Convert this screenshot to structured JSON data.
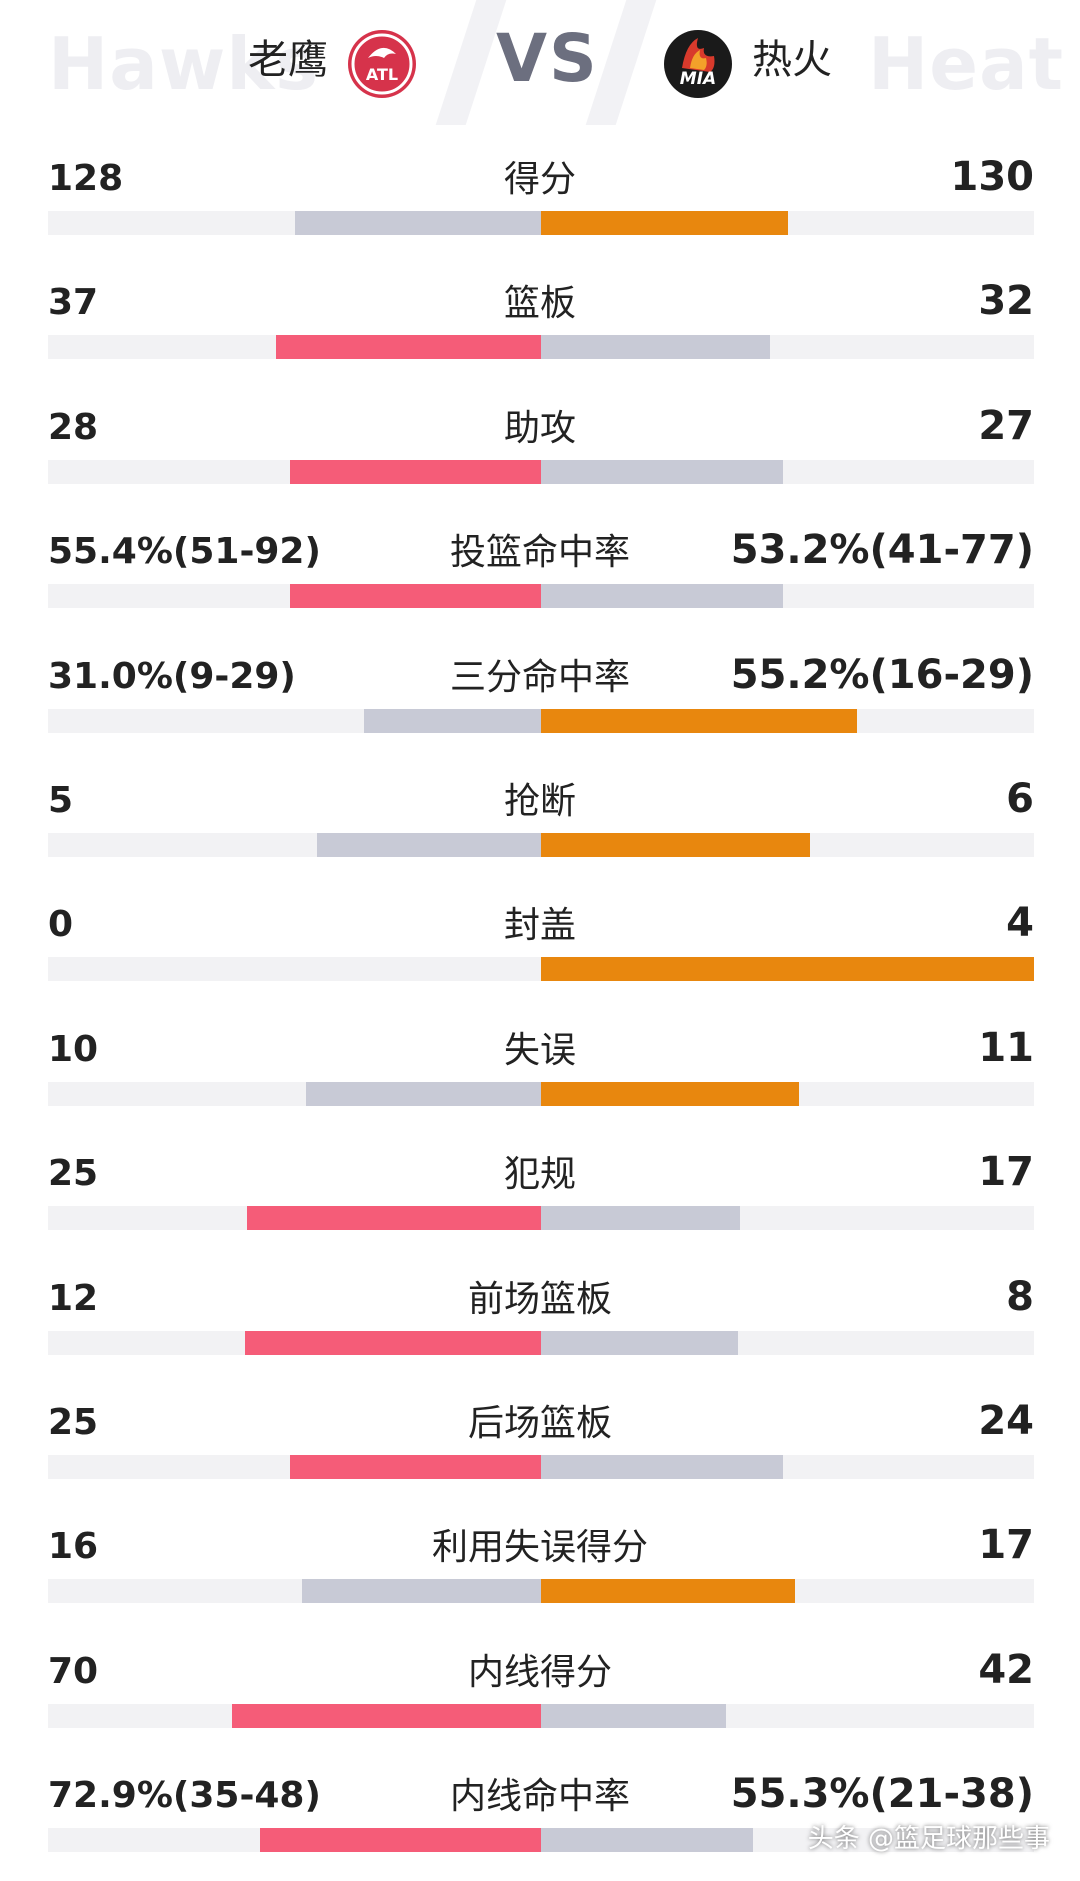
{
  "header": {
    "home": {
      "bg_word": "Hawks",
      "name": "老鹰",
      "logo_text": "ATL",
      "color": "#f0546f"
    },
    "away": {
      "bg_word": "Heat",
      "name": "热火",
      "logo_text": "MIA",
      "color": "#e8870e"
    },
    "vs": "VS"
  },
  "colors": {
    "home_win": "#f55c78",
    "away_win": "#e8870e",
    "loss": "#c8cad6",
    "track": "#f2f2f4"
  },
  "stats": [
    {
      "label": "得分",
      "home": "128",
      "away": "130",
      "home_frac": 0.25,
      "away_frac": 0.25,
      "leader": "away"
    },
    {
      "label": "篮板",
      "home": "37",
      "away": "32",
      "home_frac": 0.269,
      "away_frac": 0.232,
      "leader": "home"
    },
    {
      "label": "助攻",
      "home": "28",
      "away": "27",
      "home_frac": 0.255,
      "away_frac": 0.245,
      "leader": "home"
    },
    {
      "label": "投篮命中率",
      "home": "55.4%(51-92)",
      "away": "53.2%(41-77)",
      "home_frac": 0.255,
      "away_frac": 0.245,
      "leader": "home"
    },
    {
      "label": "三分命中率",
      "home": "31.0%(9-29)",
      "away": "55.2%(16-29)",
      "home_frac": 0.18,
      "away_frac": 0.32,
      "leader": "away"
    },
    {
      "label": "抢断",
      "home": "5",
      "away": "6",
      "home_frac": 0.227,
      "away_frac": 0.273,
      "leader": "away"
    },
    {
      "label": "封盖",
      "home": "0",
      "away": "4",
      "home_frac": 0,
      "away_frac": 0.5,
      "leader": "away"
    },
    {
      "label": "失误",
      "home": "10",
      "away": "11",
      "home_frac": 0.238,
      "away_frac": 0.262,
      "leader": "away"
    },
    {
      "label": "犯规",
      "home": "25",
      "away": "17",
      "home_frac": 0.298,
      "away_frac": 0.202,
      "leader": "home"
    },
    {
      "label": "前场篮板",
      "home": "12",
      "away": "8",
      "home_frac": 0.3,
      "away_frac": 0.2,
      "leader": "home"
    },
    {
      "label": "后场篮板",
      "home": "25",
      "away": "24",
      "home_frac": 0.255,
      "away_frac": 0.245,
      "leader": "home"
    },
    {
      "label": "利用失误得分",
      "home": "16",
      "away": "17",
      "home_frac": 0.242,
      "away_frac": 0.258,
      "leader": "away"
    },
    {
      "label": "内线得分",
      "home": "70",
      "away": "42",
      "home_frac": 0.313,
      "away_frac": 0.188,
      "leader": "home"
    },
    {
      "label": "内线命中率",
      "home": "72.9%(35-48)",
      "away": "55.3%(21-38)",
      "home_frac": 0.285,
      "away_frac": 0.215,
      "leader": "home"
    }
  ],
  "watermark": "头条 @篮足球那些事"
}
